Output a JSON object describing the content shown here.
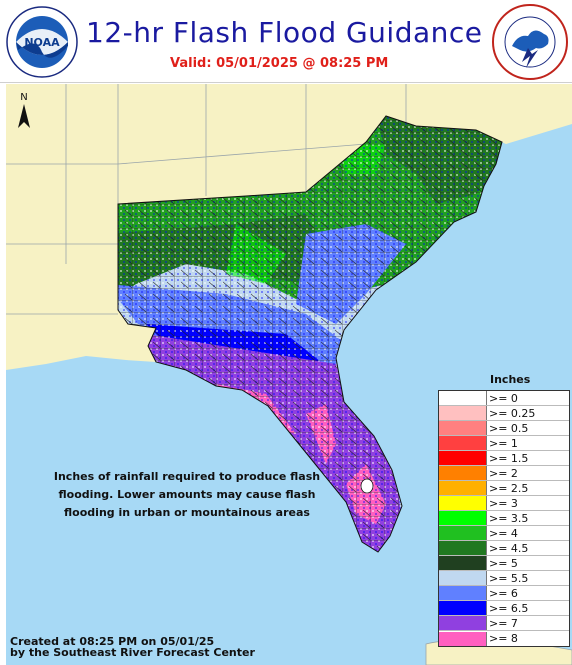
{
  "header": {
    "title": "12-hr Flash Flood Guidance",
    "valid": "Valid:  05/01/2025 @ 08:25 PM",
    "noaa_logo_text": "NOAA",
    "noaa_ring_text": "NATIONAL OCEANIC AND ATMOSPHERIC ADMINISTRATION · U.S. DEPARTMENT OF COMMERCE",
    "nws_ring_text": "NATIONAL WEATHER SERVICE · U.S. DEPARTMENT OF COMMERCE"
  },
  "map": {
    "north_label": "N",
    "note_lines": [
      "Inches of rainfall required to produce flash",
      "flooding. Lower amounts may cause flash",
      "flooding in urban or mountainous areas"
    ],
    "credit_lines": [
      "Created at 08:25 PM on 05/01/25",
      "by the Southeast River Forecast Center"
    ]
  },
  "legend": {
    "title": "Inches",
    "items": [
      {
        "label": ">= 0",
        "color": "#ffffff"
      },
      {
        "label": ">= 0.25",
        "color": "#ffc0c0"
      },
      {
        "label": ">= 0.5",
        "color": "#ff8080"
      },
      {
        "label": ">= 1",
        "color": "#ff4040"
      },
      {
        "label": ">= 1.5",
        "color": "#ff0000"
      },
      {
        "label": ">= 2",
        "color": "#ff8000"
      },
      {
        "label": ">= 2.5",
        "color": "#ffb000"
      },
      {
        "label": ">= 3",
        "color": "#ffff00"
      },
      {
        "label": ">= 3.5",
        "color": "#00ff00"
      },
      {
        "label": ">= 4",
        "color": "#20c020"
      },
      {
        "label": ">= 4.5",
        "color": "#207820"
      },
      {
        "label": ">= 5",
        "color": "#204020"
      },
      {
        "label": ">= 5.5",
        "color": "#c0d8f0"
      },
      {
        "label": ">= 6",
        "color": "#6080ff"
      },
      {
        "label": ">= 6.5",
        "color": "#0000ff"
      },
      {
        "label": ">= 7",
        "color": "#9040e0"
      },
      {
        "label": ">= 8",
        "color": "#ff60c0"
      }
    ]
  },
  "colors": {
    "title": "#1a1aa0",
    "valid": "#e0201a",
    "ocean": "#a7d9f5",
    "land": "#f7f2c4"
  }
}
